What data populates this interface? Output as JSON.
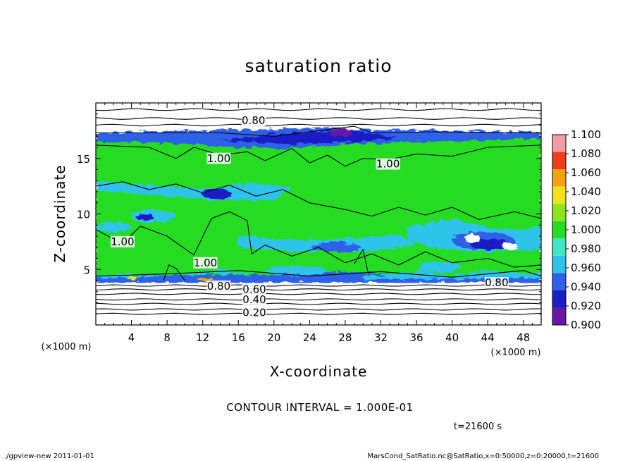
{
  "chart_data": {
    "type": "heatmap",
    "title": "saturation ratio",
    "xlabel": "X-coordinate",
    "ylabel": "Z-coordinate",
    "x_unit": "(×1000 m)",
    "y_unit": "(×1000 m)",
    "xlim": [
      0,
      50
    ],
    "ylim": [
      0,
      20
    ],
    "x_ticks": [
      4,
      8,
      12,
      16,
      20,
      24,
      28,
      32,
      36,
      40,
      44,
      48
    ],
    "y_ticks": [
      5,
      10,
      15
    ],
    "colorbar": {
      "levels": [
        0.9,
        0.92,
        0.94,
        0.96,
        0.98,
        1.0,
        1.02,
        1.04,
        1.06,
        1.08,
        1.1
      ],
      "labels": [
        "0.900",
        "0.920",
        "0.940",
        "0.960",
        "0.980",
        "1.000",
        "1.020",
        "1.040",
        "1.060",
        "1.080",
        "1.100"
      ],
      "colors": [
        "#6a17a6",
        "#1a1fc6",
        "#2e60e8",
        "#2ec4ea",
        "#3fe6c6",
        "#25dc24",
        "#8ce61c",
        "#f2e21a",
        "#f5a20f",
        "#ee3e18",
        "#f59aa0"
      ]
    },
    "contour_labels": [
      {
        "text": "0.80",
        "x": 17.7,
        "z": 18.4
      },
      {
        "text": "1.00",
        "x": 13.8,
        "z": 15.0
      },
      {
        "text": "1.00",
        "x": 32.8,
        "z": 14.5
      },
      {
        "text": "1.00",
        "x": 3.0,
        "z": 7.5
      },
      {
        "text": "1.00",
        "x": 12.3,
        "z": 5.6
      },
      {
        "text": "0.80",
        "x": 13.8,
        "z": 3.5
      },
      {
        "text": "0.60",
        "x": 17.8,
        "z": 3.2
      },
      {
        "text": "0.40",
        "x": 17.8,
        "z": 2.3
      },
      {
        "text": "0.20",
        "x": 17.8,
        "z": 1.1
      },
      {
        "text": "0.80",
        "x": 45.0,
        "z": 3.8
      }
    ],
    "contour_interval_text": "CONTOUR INTERVAL = 1.000E-01",
    "time_text": "t=21600 s"
  },
  "footer": {
    "left": "./gpview-new 2011-01-01",
    "right": "MarsCond_SatRatio.nc@SatRatio,x=0:50000,z=0:20000,t=21600"
  }
}
